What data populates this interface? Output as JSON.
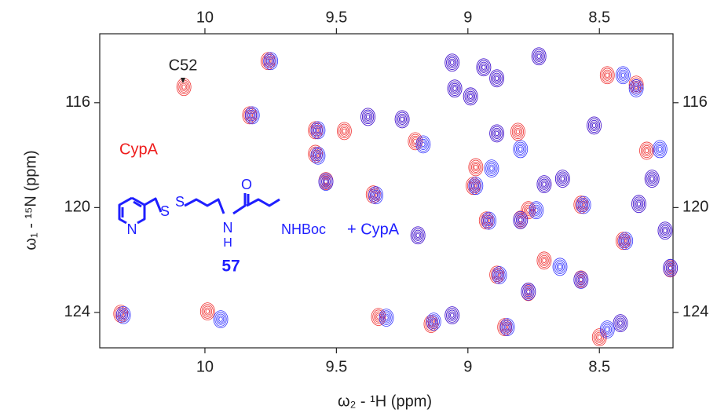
{
  "chart_data": {
    "type": "contour-scatter",
    "x_label": "ω₂ - ¹H (ppm)",
    "y_label": "ω₁ - ¹⁵N (ppm)",
    "xlim": [
      10.4,
      8.22
    ],
    "ylim": [
      113.37,
      125.35
    ],
    "xticks": [
      10,
      9.5,
      9,
      8.5
    ],
    "yticks": [
      116,
      120,
      124
    ],
    "annotations": [
      {
        "text": "C52",
        "x": 10.08,
        "y": 115.4
      }
    ],
    "structure": {
      "compound": "57",
      "atoms": [
        "N",
        "S",
        "S",
        "N",
        "H",
        "O",
        "NHBoc"
      ]
    },
    "series": [
      {
        "name": "CypA",
        "color": "#ee1c1c",
        "x": [
          10.32,
          9.99,
          10.08,
          9.83,
          9.76,
          9.58,
          9.58,
          9.54,
          9.47,
          9.38,
          9.34,
          9.36,
          9.25,
          9.2,
          9.19,
          9.14,
          9.06,
          9.06,
          9.05,
          8.99,
          8.94,
          8.97,
          8.98,
          8.89,
          8.89,
          8.93,
          8.81,
          8.89,
          8.86,
          8.8,
          8.77,
          8.77,
          8.71,
          8.73,
          8.71,
          8.64,
          8.57,
          8.57,
          8.52,
          8.47,
          8.36,
          8.41,
          8.35,
          8.32,
          8.3,
          8.25,
          8.23,
          8.5,
          8.42
        ],
        "values": [
          124.05,
          123.96,
          115.4,
          116.48,
          114.41,
          117.05,
          117.95,
          118.99,
          117.08,
          116.54,
          124.17,
          119.5,
          116.63,
          117.47,
          121.06,
          124.44,
          124.11,
          114.47,
          115.46,
          115.76,
          114.65,
          118.46,
          119.17,
          117.17,
          122.56,
          120.49,
          117.11,
          115.07,
          124.56,
          120.46,
          120.1,
          123.22,
          119.11,
          114.23,
          122.02,
          118.9,
          122.74,
          119.89,
          116.87,
          114.95,
          115.31,
          121.27,
          119.86,
          117.83,
          118.9,
          120.88,
          122.32,
          124.95,
          124.41
        ]
      },
      {
        "name": "+ CypA",
        "color": "#1f1fff",
        "x": [
          10.31,
          9.94,
          9.82,
          9.75,
          9.57,
          9.57,
          9.54,
          9.38,
          9.31,
          9.35,
          9.25,
          9.17,
          9.19,
          9.13,
          9.06,
          9.06,
          9.05,
          8.99,
          8.94,
          8.91,
          8.97,
          8.89,
          8.88,
          8.92,
          8.8,
          8.89,
          8.85,
          8.8,
          8.74,
          8.77,
          8.71,
          8.73,
          8.65,
          8.64,
          8.57,
          8.56,
          8.52,
          8.41,
          8.36,
          8.4,
          8.35,
          8.27,
          8.3,
          8.25,
          8.23,
          8.47,
          8.42
        ],
        "values": [
          124.1,
          124.26,
          116.48,
          114.41,
          117.05,
          118.02,
          119.02,
          116.54,
          124.2,
          119.53,
          116.63,
          117.59,
          121.06,
          124.35,
          124.11,
          114.47,
          115.46,
          115.76,
          114.65,
          118.51,
          119.17,
          117.17,
          122.58,
          120.5,
          117.77,
          115.07,
          124.56,
          120.48,
          120.1,
          123.2,
          119.11,
          114.23,
          122.26,
          118.9,
          122.76,
          119.9,
          116.87,
          114.95,
          115.45,
          121.27,
          119.86,
          117.77,
          118.9,
          120.88,
          122.3,
          124.65,
          124.41
        ]
      }
    ]
  }
}
